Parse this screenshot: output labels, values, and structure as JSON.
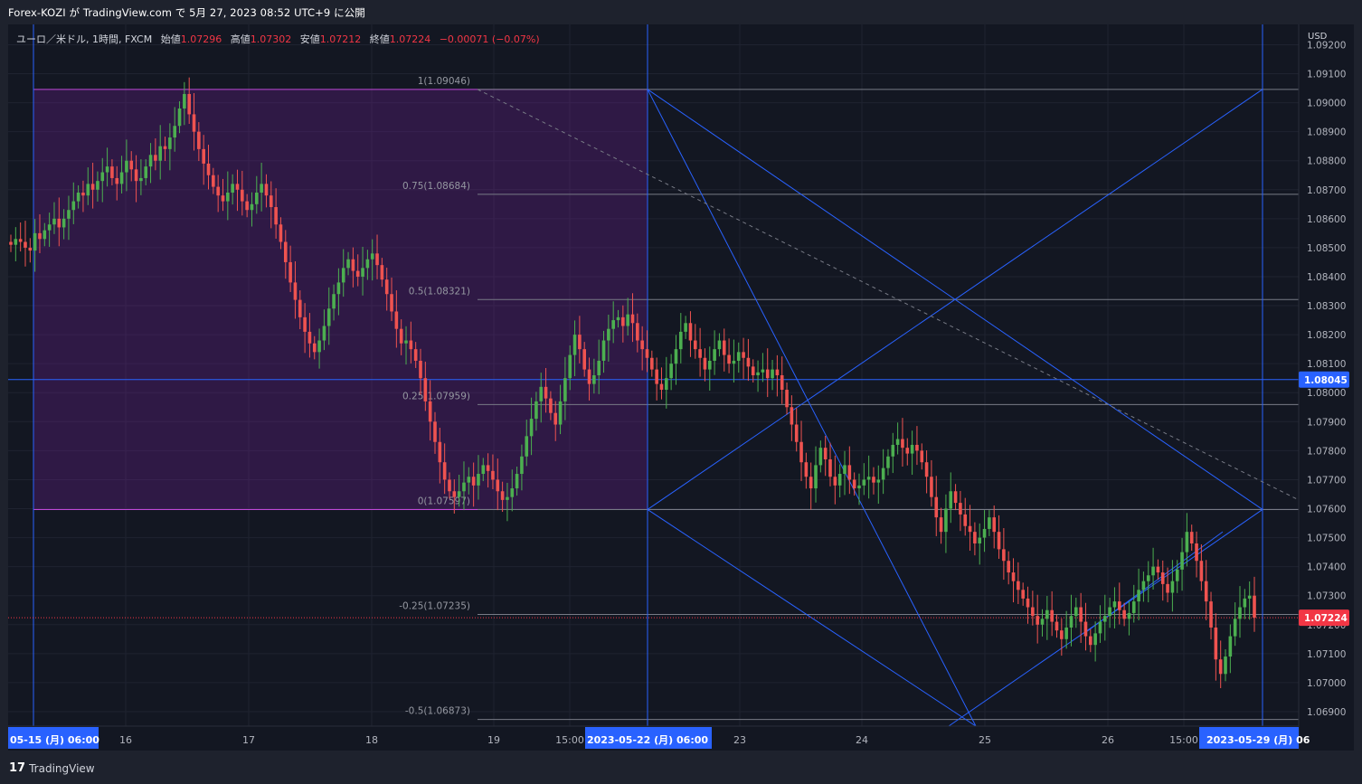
{
  "header": {
    "title": "Forex-KOZI が TradingView.com で 5月 27, 2023 08:52 UTC+9 に公開"
  },
  "legend": {
    "symbol": "ユーロ／米ドル, 1時間, FXCM",
    "open_label": "始値",
    "open": "1.07296",
    "high_label": "高値",
    "high": "1.07302",
    "low_label": "安値",
    "low": "1.07212",
    "close_label": "終値",
    "close": "1.07224",
    "change": "−0.00071 (−0.07%)"
  },
  "footer": {
    "brand": "TradingView",
    "brand_mark": "17"
  },
  "chart_data": {
    "type": "candlestick",
    "symbol": "EUR/USD",
    "currency": "USD",
    "timeframe": "1時間",
    "ylim": [
      1.0685,
      1.0927
    ],
    "price_ticks": [
      "1.06900",
      "1.07000",
      "1.07100",
      "1.07200",
      "1.07300",
      "1.07400",
      "1.07500",
      "1.07600",
      "1.07700",
      "1.07800",
      "1.07900",
      "1.08000",
      "1.08100",
      "1.08200",
      "1.08300",
      "1.08400",
      "1.08500",
      "1.08600",
      "1.08700",
      "1.08800",
      "1.08900",
      "1.09000",
      "1.09100",
      "1.09200"
    ],
    "time_ticks": [
      "16",
      "17",
      "18",
      "19",
      "15:00",
      "23",
      "24",
      "25",
      "26",
      "15:00"
    ],
    "time_markers": [
      "05-15 (月)  06:00",
      "2023-05-22 (月)  06:00",
      "2023-05-29 (月)  06"
    ],
    "price_labels": [
      {
        "value": 1.08045,
        "text": "1.08045",
        "color": "#2962ff"
      },
      {
        "value": 1.07224,
        "text": "1.07224",
        "color": "#f23645"
      }
    ],
    "fib_levels": [
      {
        "ratio": "1",
        "price": 1.09046,
        "label": "1(1.09046)"
      },
      {
        "ratio": "0.75",
        "price": 1.08684,
        "label": "0.75(1.08684)"
      },
      {
        "ratio": "0.5",
        "price": 1.08321,
        "label": "0.5(1.08321)"
      },
      {
        "ratio": "0.25",
        "price": 1.07959,
        "label": "0.25(1.07959)"
      },
      {
        "ratio": "0",
        "price": 1.07597,
        "label": "0(1.07597)"
      },
      {
        "ratio": "-0.25",
        "price": 1.07235,
        "label": "-0.25(1.07235)"
      },
      {
        "ratio": "-0.5",
        "price": 1.06873,
        "label": "-0.5(1.06873)"
      }
    ],
    "series_close": [
      1.0851,
      1.0853,
      1.0852,
      1.085,
      1.0849,
      1.0855,
      1.0853,
      1.0856,
      1.0858,
      1.086,
      1.0857,
      1.086,
      1.0863,
      1.0866,
      1.0869,
      1.0868,
      1.0872,
      1.087,
      1.0873,
      1.0876,
      1.0878,
      1.0874,
      1.0872,
      1.0876,
      1.088,
      1.0877,
      1.0873,
      1.0874,
      1.0878,
      1.0882,
      1.088,
      1.0885,
      1.0884,
      1.0888,
      1.0892,
      1.0898,
      1.0903,
      1.0896,
      1.089,
      1.0884,
      1.0879,
      1.0875,
      1.0871,
      1.0868,
      1.0866,
      1.0869,
      1.0872,
      1.087,
      1.0866,
      1.0863,
      1.0865,
      1.0869,
      1.0872,
      1.0868,
      1.0864,
      1.0858,
      1.0852,
      1.0845,
      1.0838,
      1.0832,
      1.0826,
      1.0821,
      1.0817,
      1.0814,
      1.0818,
      1.0823,
      1.0829,
      1.0834,
      1.0838,
      1.0843,
      1.0846,
      1.0842,
      1.084,
      1.0843,
      1.0846,
      1.0848,
      1.0844,
      1.0839,
      1.0834,
      1.0828,
      1.0822,
      1.0817,
      1.0818,
      1.0815,
      1.0811,
      1.0805,
      1.0797,
      1.079,
      1.0783,
      1.0776,
      1.077,
      1.0766,
      1.0764,
      1.0766,
      1.0769,
      1.0771,
      1.0768,
      1.0772,
      1.0775,
      1.0773,
      1.077,
      1.0766,
      1.0763,
      1.0764,
      1.0767,
      1.0772,
      1.0778,
      1.0785,
      1.0791,
      1.0797,
      1.0802,
      1.0798,
      1.0793,
      1.0789,
      1.0797,
      1.0805,
      1.0813,
      1.082,
      1.0815,
      1.0808,
      1.0803,
      1.0806,
      1.0811,
      1.0818,
      1.0822,
      1.0825,
      1.0826,
      1.0823,
      1.0827,
      1.0824,
      1.0818,
      1.0815,
      1.0812,
      1.0808,
      1.0803,
      1.0801,
      1.0805,
      1.081,
      1.0815,
      1.0821,
      1.0824,
      1.0818,
      1.0815,
      1.0812,
      1.0808,
      1.0811,
      1.0815,
      1.0818,
      1.0813,
      1.081,
      1.0811,
      1.0814,
      1.0812,
      1.0809,
      1.0806,
      1.0807,
      1.0808,
      1.0805,
      1.0808,
      1.0806,
      1.0801,
      1.0795,
      1.0789,
      1.0783,
      1.0776,
      1.0771,
      1.0767,
      1.0775,
      1.0781,
      1.0777,
      1.0771,
      1.0768,
      1.0772,
      1.0775,
      1.077,
      1.0767,
      1.0768,
      1.077,
      1.0771,
      1.0769,
      1.077,
      1.0774,
      1.0778,
      1.0782,
      1.0784,
      1.0781,
      1.0779,
      1.0782,
      1.078,
      1.0776,
      1.0771,
      1.0764,
      1.0757,
      1.0752,
      1.076,
      1.0766,
      1.0762,
      1.0758,
      1.0754,
      1.0752,
      1.0748,
      1.075,
      1.0753,
      1.0757,
      1.0752,
      1.0746,
      1.0742,
      1.0738,
      1.0735,
      1.0732,
      1.0729,
      1.0726,
      1.0723,
      1.072,
      1.0722,
      1.0725,
      1.0721,
      1.0718,
      1.0715,
      1.0719,
      1.0723,
      1.0726,
      1.0721,
      1.0716,
      1.0713,
      1.0717,
      1.0721,
      1.0723,
      1.0726,
      1.0728,
      1.0725,
      1.0722,
      1.0724,
      1.0728,
      1.0732,
      1.0735,
      1.0737,
      1.074,
      1.0738,
      1.0734,
      1.0731,
      1.0735,
      1.0739,
      1.0745,
      1.0752,
      1.0748,
      1.0742,
      1.0735,
      1.0728,
      1.0719,
      1.0708,
      1.0703,
      1.0709,
      1.0716,
      1.0722,
      1.0726,
      1.0729,
      1.073,
      1.07224
    ]
  }
}
